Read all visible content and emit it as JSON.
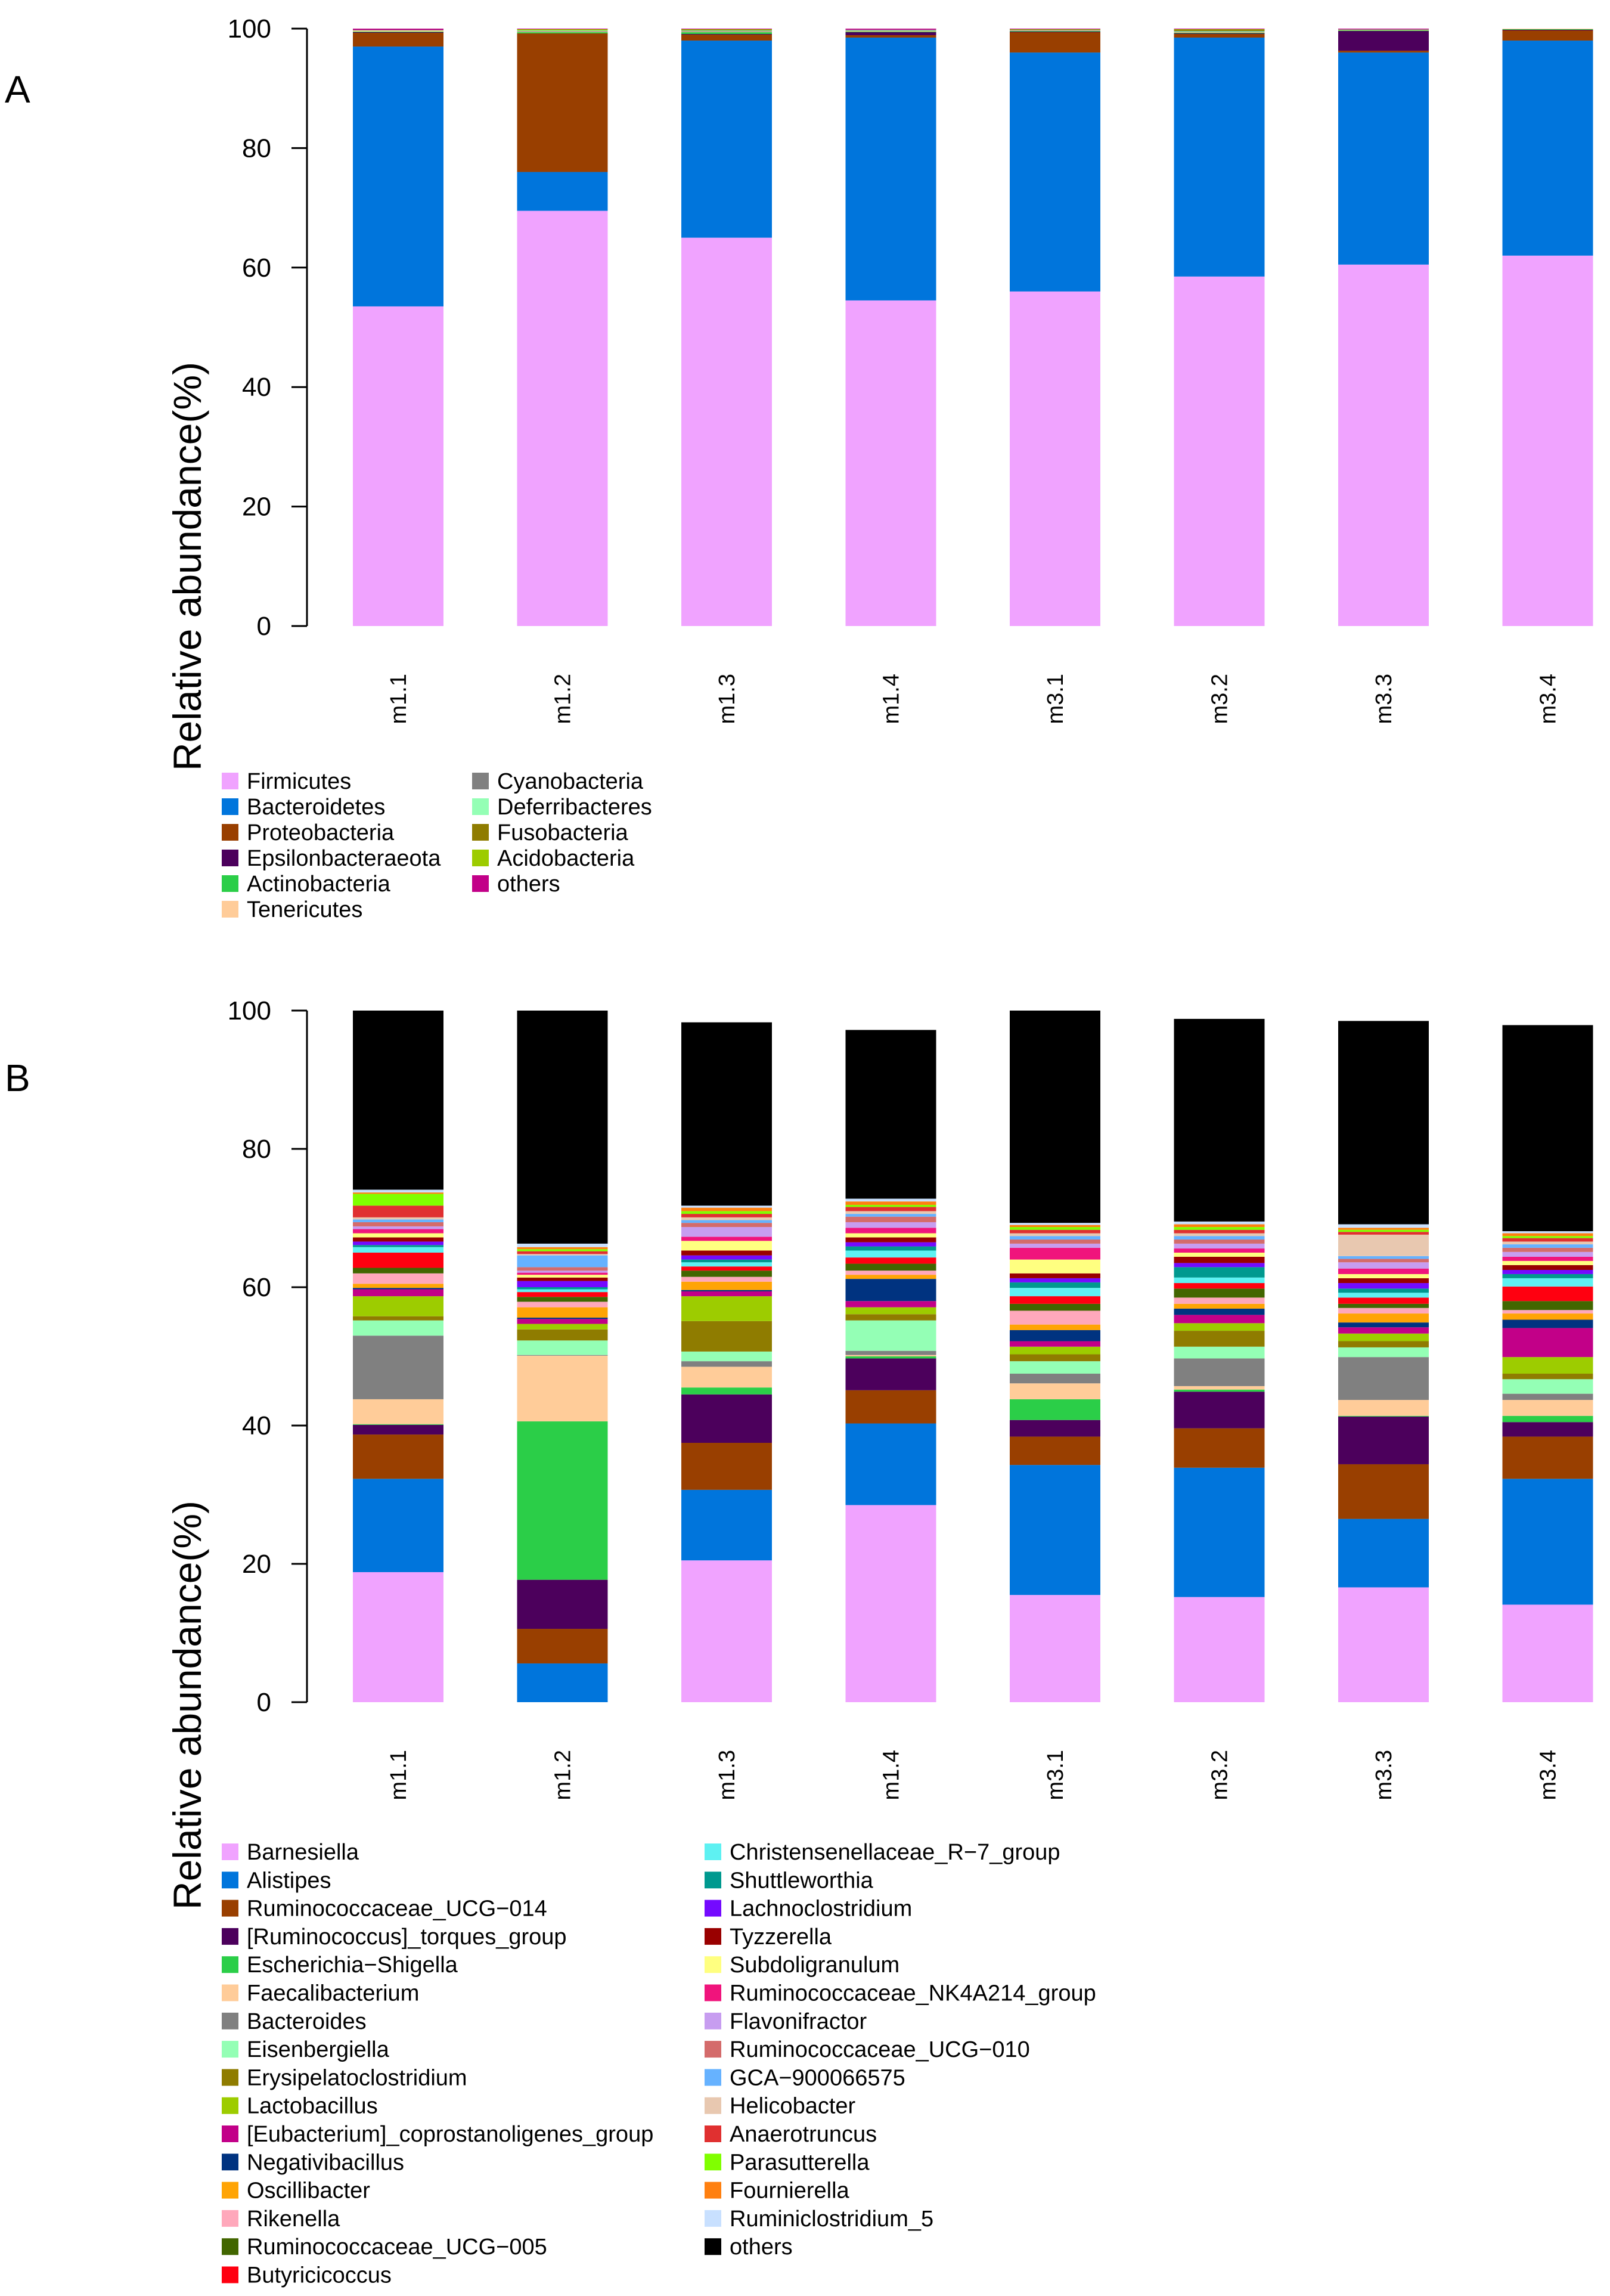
{
  "chart_data": [
    {
      "panel": "A",
      "type": "bar",
      "stacked": true,
      "title": "",
      "xlabel": "",
      "ylabel": "Relative abundance(%)",
      "ylim": [
        0,
        100
      ],
      "yticks": [
        "0",
        "20",
        "40",
        "60",
        "80",
        "100"
      ],
      "categories": [
        "m1.1",
        "m1.2",
        "m1.3",
        "m1.4",
        "m3.1",
        "m3.2",
        "m3.3",
        "m3.4"
      ],
      "series": [
        {
          "name": "Firmicutes",
          "color": "#F0A3FF",
          "values": [
            53.5,
            69.5,
            65.0,
            54.5,
            56.0,
            58.5,
            60.5,
            62.0
          ]
        },
        {
          "name": "Bacteroidetes",
          "color": "#0075DC",
          "values": [
            43.5,
            6.5,
            33.0,
            44.0,
            40.0,
            40.0,
            35.5,
            36.0
          ]
        },
        {
          "name": "Proteobacteria",
          "color": "#993F00",
          "values": [
            2.3,
            23.2,
            1.0,
            0.4,
            3.4,
            0.6,
            0.3,
            1.7
          ]
        },
        {
          "name": "Epsilonbacteraeota",
          "color": "#4C005C",
          "values": [
            0.1,
            0.0,
            0.1,
            0.5,
            0.1,
            0.1,
            3.3,
            0.1
          ]
        },
        {
          "name": "Actinobacteria",
          "color": "#2BCE48",
          "values": [
            0.1,
            0.2,
            0.3,
            0.1,
            0.1,
            0.1,
            0.1,
            0.1
          ]
        },
        {
          "name": "Tenericutes",
          "color": "#FFCC99",
          "values": [
            0.2,
            0.1,
            0.1,
            0.1,
            0.1,
            0.1,
            0.1,
            0.1
          ]
        },
        {
          "name": "Cyanobacteria",
          "color": "#808080",
          "values": [
            0.1,
            0.1,
            0.1,
            0.1,
            0.1,
            0.1,
            0.1,
            0.0
          ]
        },
        {
          "name": "Deferribacteres",
          "color": "#94FFB5",
          "values": [
            0.0,
            0.1,
            0.1,
            0.1,
            0.0,
            0.1,
            0.0,
            0.0
          ]
        },
        {
          "name": "Fusobacteria",
          "color": "#8F7C00",
          "values": [
            0.0,
            0.0,
            0.1,
            0.0,
            0.0,
            0.2,
            0.0,
            0.0
          ]
        },
        {
          "name": "Acidobacteria",
          "color": "#9DCC00",
          "values": [
            0.0,
            0.2,
            0.1,
            0.0,
            0.1,
            0.1,
            0.0,
            0.0
          ]
        },
        {
          "name": "others",
          "color": "#C20088",
          "values": [
            0.2,
            0.1,
            0.1,
            0.2,
            0.1,
            0.1,
            0.1,
            0.0
          ]
        }
      ],
      "legend_position": "bottom-left"
    },
    {
      "panel": "B",
      "type": "bar",
      "stacked": true,
      "title": "",
      "xlabel": "",
      "ylabel": "Relative abundance(%)",
      "ylim": [
        0,
        100
      ],
      "yticks": [
        "0",
        "20",
        "40",
        "60",
        "80",
        "100"
      ],
      "categories": [
        "m1.1",
        "m1.2",
        "m1.3",
        "m1.4",
        "m3.1",
        "m3.2",
        "m3.3",
        "m3.4"
      ],
      "series": [
        {
          "name": "Barnesiella",
          "color": "#F0A3FF",
          "values": [
            18.8,
            0.0,
            20.5,
            28.5,
            15.5,
            15.2,
            16.6,
            14.1
          ]
        },
        {
          "name": "Alistipes",
          "color": "#0075DC",
          "values": [
            13.5,
            5.6,
            10.2,
            11.8,
            18.8,
            18.7,
            9.9,
            18.2
          ]
        },
        {
          "name": "Ruminococcaceae_UCG−014",
          "color": "#993F00",
          "values": [
            6.4,
            5.0,
            6.8,
            4.8,
            4.1,
            5.7,
            7.9,
            6.1
          ]
        },
        {
          "name": "[Ruminococcus]_torques_group",
          "color": "#4C005C",
          "values": [
            1.4,
            7.1,
            7.0,
            4.6,
            2.4,
            5.3,
            6.9,
            2.1
          ]
        },
        {
          "name": "Escherichia−Shigella",
          "color": "#2BCE48",
          "values": [
            0.1,
            22.9,
            1.0,
            0.3,
            3.0,
            0.3,
            0.1,
            0.9
          ]
        },
        {
          "name": "Faecalibacterium",
          "color": "#FFCC99",
          "values": [
            3.6,
            9.5,
            3.0,
            0.2,
            2.3,
            0.5,
            2.3,
            2.3
          ]
        },
        {
          "name": "Bacteroides",
          "color": "#808080",
          "values": [
            9.2,
            0.1,
            0.8,
            0.6,
            1.4,
            4.0,
            6.2,
            0.9
          ]
        },
        {
          "name": "Eisenbergiella",
          "color": "#94FFB5",
          "values": [
            2.2,
            2.1,
            1.4,
            4.4,
            1.8,
            1.7,
            1.4,
            2.1
          ]
        },
        {
          "name": "Erysipelatoclostridium",
          "color": "#8F7C00",
          "values": [
            0.6,
            1.6,
            4.4,
            0.9,
            1.0,
            2.3,
            0.9,
            0.8
          ]
        },
        {
          "name": "Lactobacillus",
          "color": "#9DCC00",
          "values": [
            2.9,
            0.8,
            3.6,
            1.0,
            1.1,
            1.1,
            1.1,
            2.4
          ]
        },
        {
          "name": "[Eubacterium]_coprostanoligenes_group",
          "color": "#C20088",
          "values": [
            1.0,
            0.7,
            0.7,
            0.9,
            0.8,
            1.2,
            0.9,
            4.2
          ]
        },
        {
          "name": "Negativibacillus",
          "color": "#003380",
          "values": [
            0.2,
            0.2,
            0.2,
            3.2,
            1.6,
            0.9,
            0.7,
            1.2
          ]
        },
        {
          "name": "Oscillibacter",
          "color": "#FFA405",
          "values": [
            0.6,
            1.5,
            1.2,
            0.6,
            0.8,
            0.7,
            1.3,
            0.9
          ]
        },
        {
          "name": "Rikenella",
          "color": "#FFA8BB",
          "values": [
            1.5,
            0.8,
            0.7,
            0.6,
            2.0,
            0.9,
            0.8,
            0.5
          ]
        },
        {
          "name": "Ruminococcaceae_UCG−005",
          "color": "#426600",
          "values": [
            0.8,
            0.7,
            0.9,
            1.0,
            1.0,
            1.3,
            0.6,
            1.3
          ]
        },
        {
          "name": "Butyricicoccus",
          "color": "#FF0010",
          "values": [
            2.2,
            0.7,
            0.6,
            0.9,
            1.1,
            0.8,
            0.9,
            2.1
          ]
        },
        {
          "name": "Christensenellaceae_R−7_group",
          "color": "#5EF1F2",
          "values": [
            0.8,
            0.4,
            0.6,
            1.0,
            1.2,
            0.8,
            0.7,
            1.2
          ]
        },
        {
          "name": "Shuttleworthia",
          "color": "#00998F",
          "values": [
            0.3,
            0.3,
            0.4,
            0.6,
            0.8,
            1.5,
            0.6,
            0.6
          ]
        },
        {
          "name": "Lachnoclostridium",
          "color": "#740AFF",
          "values": [
            0.5,
            0.9,
            0.6,
            0.6,
            0.6,
            0.6,
            0.8,
            0.6
          ]
        },
        {
          "name": "Tyzzerella",
          "color": "#990000",
          "values": [
            0.6,
            0.5,
            0.7,
            0.7,
            0.7,
            0.9,
            0.7,
            0.7
          ]
        },
        {
          "name": "Subdoligranulum",
          "color": "#FFFF80",
          "values": [
            0.6,
            0.4,
            1.4,
            0.6,
            2.0,
            0.6,
            0.6,
            0.6
          ]
        },
        {
          "name": "Ruminococcaceae_NK4A214_group",
          "color": "#F0147C",
          "values": [
            0.6,
            0.3,
            0.6,
            0.8,
            1.7,
            0.6,
            0.8,
            0.6
          ]
        },
        {
          "name": "Flavonifractor",
          "color": "#C79DF0",
          "values": [
            0.4,
            0.3,
            1.4,
            0.8,
            0.6,
            0.7,
            0.9,
            0.7
          ]
        },
        {
          "name": "Ruminococcaceae_UCG−010",
          "color": "#D46B6B",
          "values": [
            0.6,
            0.5,
            0.6,
            0.8,
            0.6,
            0.6,
            0.5,
            0.6
          ]
        },
        {
          "name": "GCA−900066575",
          "color": "#66B2FF",
          "values": [
            0.4,
            1.7,
            0.4,
            0.4,
            0.5,
            0.5,
            0.4,
            0.5
          ]
        },
        {
          "name": "Helicobacter",
          "color": "#E8C8B0",
          "values": [
            0.3,
            0.2,
            0.4,
            0.4,
            0.4,
            0.4,
            3.1,
            0.4
          ]
        },
        {
          "name": "Anaerotruncus",
          "color": "#E03030",
          "values": [
            1.7,
            0.4,
            0.5,
            0.6,
            0.5,
            0.5,
            0.4,
            0.5
          ]
        },
        {
          "name": "Parasutterella",
          "color": "#80FF00",
          "values": [
            1.7,
            0.3,
            0.4,
            0.3,
            0.4,
            0.4,
            0.3,
            0.3
          ]
        },
        {
          "name": "Fournierella",
          "color": "#FF8010",
          "values": [
            0.2,
            0.3,
            0.5,
            0.5,
            0.3,
            0.4,
            0.3,
            0.4
          ]
        },
        {
          "name": "Ruminiclostridium_5",
          "color": "#C8E0FF",
          "values": [
            0.4,
            0.5,
            0.3,
            0.4,
            0.3,
            0.4,
            0.5,
            0.3
          ]
        },
        {
          "name": "others",
          "color": "#000000",
          "values": [
            28.1,
            35.8,
            26.5,
            24.4,
            31.4,
            29.3,
            29.4,
            29.8
          ]
        }
      ],
      "legend_position": "bottom-left"
    }
  ],
  "panels": {
    "A": {
      "letter": "A"
    },
    "B": {
      "letter": "B"
    }
  }
}
